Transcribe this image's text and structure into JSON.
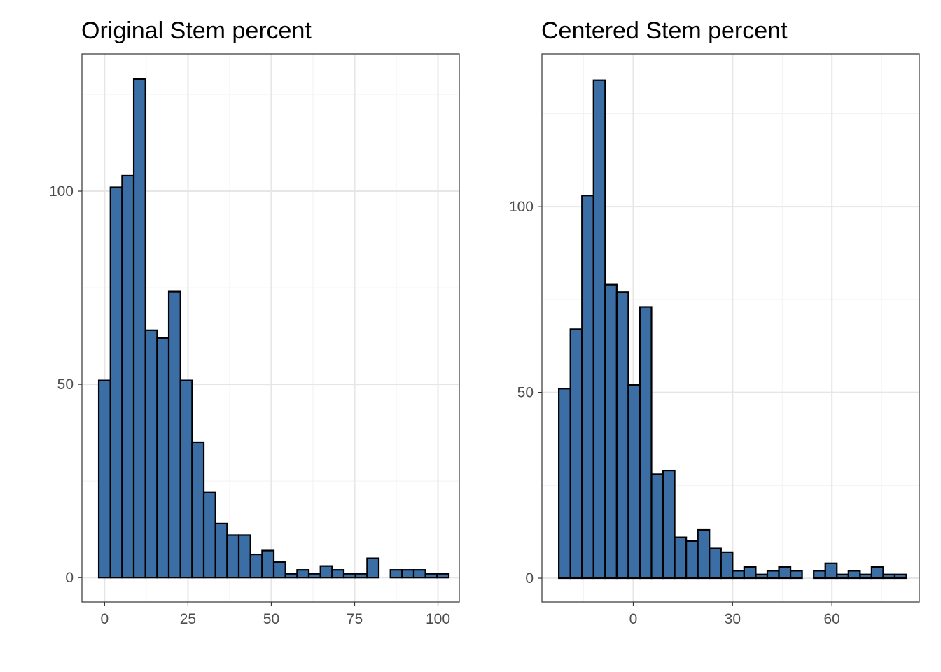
{
  "colors": {
    "bar_fill": "#3a6ea5",
    "bar_stroke": "#000000",
    "grid_major": "#e6e6e6",
    "grid_minor": "#f2f2f2",
    "panel_border": "#333333",
    "tick_text": "#4d4d4d"
  },
  "chart_data": [
    {
      "type": "bar",
      "title": "Original Stem percent",
      "xlabel": "",
      "ylabel": "",
      "xlim": [
        -6.8,
        106.4
      ],
      "ylim": [
        -6.3,
        135.5
      ],
      "x_ticks": [
        0,
        25,
        50,
        75,
        100
      ],
      "y_ticks": [
        0,
        50,
        100
      ],
      "bin_width": 3.5,
      "bin_start": -1.75,
      "counts": [
        51,
        101,
        104,
        129,
        64,
        62,
        74,
        51,
        35,
        22,
        14,
        11,
        11,
        6,
        7,
        4,
        1,
        2,
        1,
        3,
        2,
        1,
        1,
        5,
        0,
        2,
        2,
        2,
        1,
        1
      ],
      "grid": true,
      "legend": "none"
    },
    {
      "type": "bar",
      "title": "Centered Stem percent",
      "xlabel": "",
      "ylabel": "",
      "xlim": [
        -27.6,
        86.4
      ],
      "ylim": [
        -6.4,
        141.1
      ],
      "x_ticks": [
        0,
        30,
        60
      ],
      "y_ticks": [
        0,
        50,
        100
      ],
      "bin_width": 3.5,
      "bin_start": -22.5,
      "counts": [
        51,
        67,
        103,
        134,
        79,
        77,
        52,
        73,
        28,
        29,
        11,
        10,
        13,
        8,
        7,
        2,
        3,
        1,
        2,
        3,
        2,
        0,
        2,
        4,
        1,
        2,
        1,
        3,
        1,
        1
      ],
      "grid": true,
      "legend": "none"
    }
  ]
}
